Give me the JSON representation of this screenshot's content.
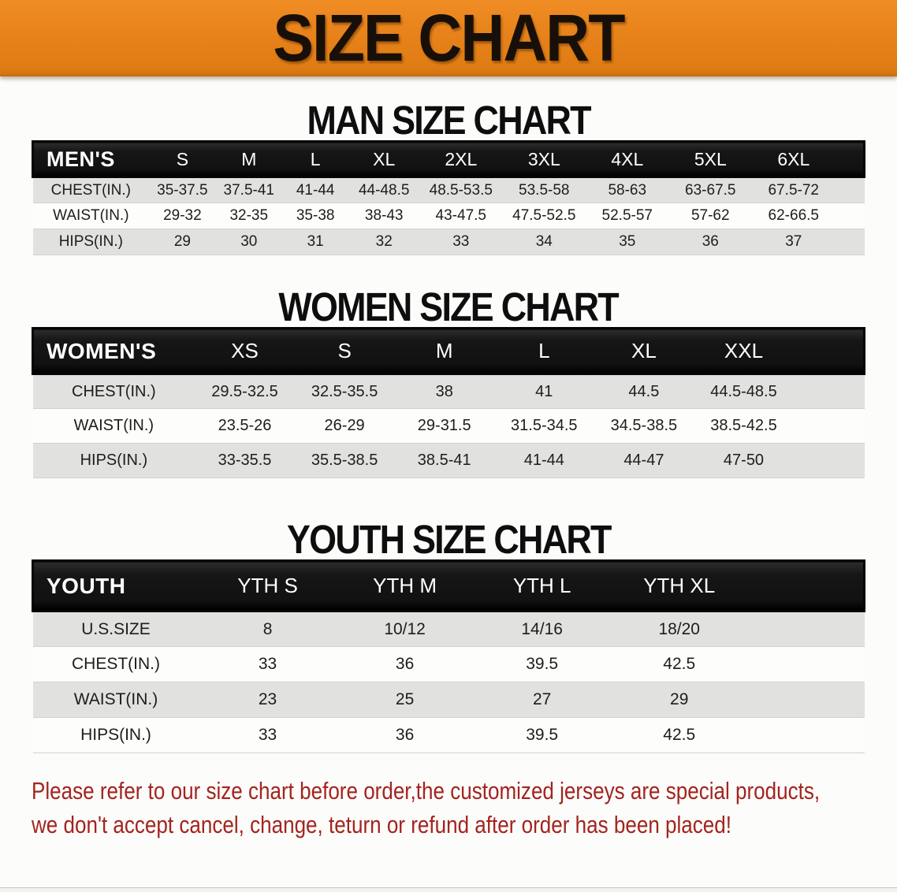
{
  "banner": {
    "title": "SIZE CHART"
  },
  "colors": {
    "banner_bg": "#e8821b",
    "header_bar_bg": "#161616",
    "alt_row_bg": "#e1e1df",
    "disclaimer_color": "#a3241f"
  },
  "tables": [
    {
      "title": "MAN SIZE CHART",
      "header": [
        "MEN'S",
        "S",
        "M",
        "L",
        "XL",
        "2XL",
        "3XL",
        "4XL",
        "5XL",
        "6XL"
      ],
      "rows": [
        {
          "label": "CHEST(IN.)",
          "values": [
            "35-37.5",
            "37.5-41",
            "41-44",
            "44-48.5",
            "48.5-53.5",
            "53.5-58",
            "58-63",
            "63-67.5",
            "67.5-72"
          ]
        },
        {
          "label": "WAIST(IN.)",
          "values": [
            "29-32",
            "32-35",
            "35-38",
            "38-43",
            "43-47.5",
            "47.5-52.5",
            "52.5-57",
            "57-62",
            "62-66.5"
          ]
        },
        {
          "label": "HIPS(IN.)",
          "values": [
            "29",
            "30",
            "31",
            "32",
            "33",
            "34",
            "35",
            "36",
            "37"
          ]
        }
      ]
    },
    {
      "title": "WOMEN SIZE CHART",
      "header": [
        "WOMEN'S",
        "XS",
        "S",
        "M",
        "L",
        "XL",
        "XXL"
      ],
      "rows": [
        {
          "label": "CHEST(IN.)",
          "values": [
            "29.5-32.5",
            "32.5-35.5",
            "38",
            "41",
            "44.5",
            "44.5-48.5"
          ]
        },
        {
          "label": "WAIST(IN.)",
          "values": [
            "23.5-26",
            "26-29",
            "29-31.5",
            "31.5-34.5",
            "34.5-38.5",
            "38.5-42.5"
          ]
        },
        {
          "label": "HIPS(IN.)",
          "values": [
            "33-35.5",
            "35.5-38.5",
            "38.5-41",
            "41-44",
            "44-47",
            "47-50"
          ]
        }
      ]
    },
    {
      "title": "YOUTH SIZE CHART",
      "header": [
        "YOUTH",
        "YTH S",
        "YTH M",
        "YTH L",
        "YTH XL"
      ],
      "rows": [
        {
          "label": "U.S.SIZE",
          "values": [
            "8",
            "10/12",
            "14/16",
            "18/20"
          ]
        },
        {
          "label": "CHEST(IN.)",
          "values": [
            "33",
            "36",
            "39.5",
            "42.5"
          ]
        },
        {
          "label": "WAIST(IN.)",
          "values": [
            "23",
            "25",
            "27",
            "29"
          ]
        },
        {
          "label": "HIPS(IN.)",
          "values": [
            "33",
            "36",
            "39.5",
            "42.5"
          ]
        }
      ]
    }
  ],
  "disclaimer": {
    "line1": "Please refer to our size chart before order,the customized jerseys are special products,",
    "line2": "we don't accept cancel, change, teturn or refund after order has been placed!"
  }
}
